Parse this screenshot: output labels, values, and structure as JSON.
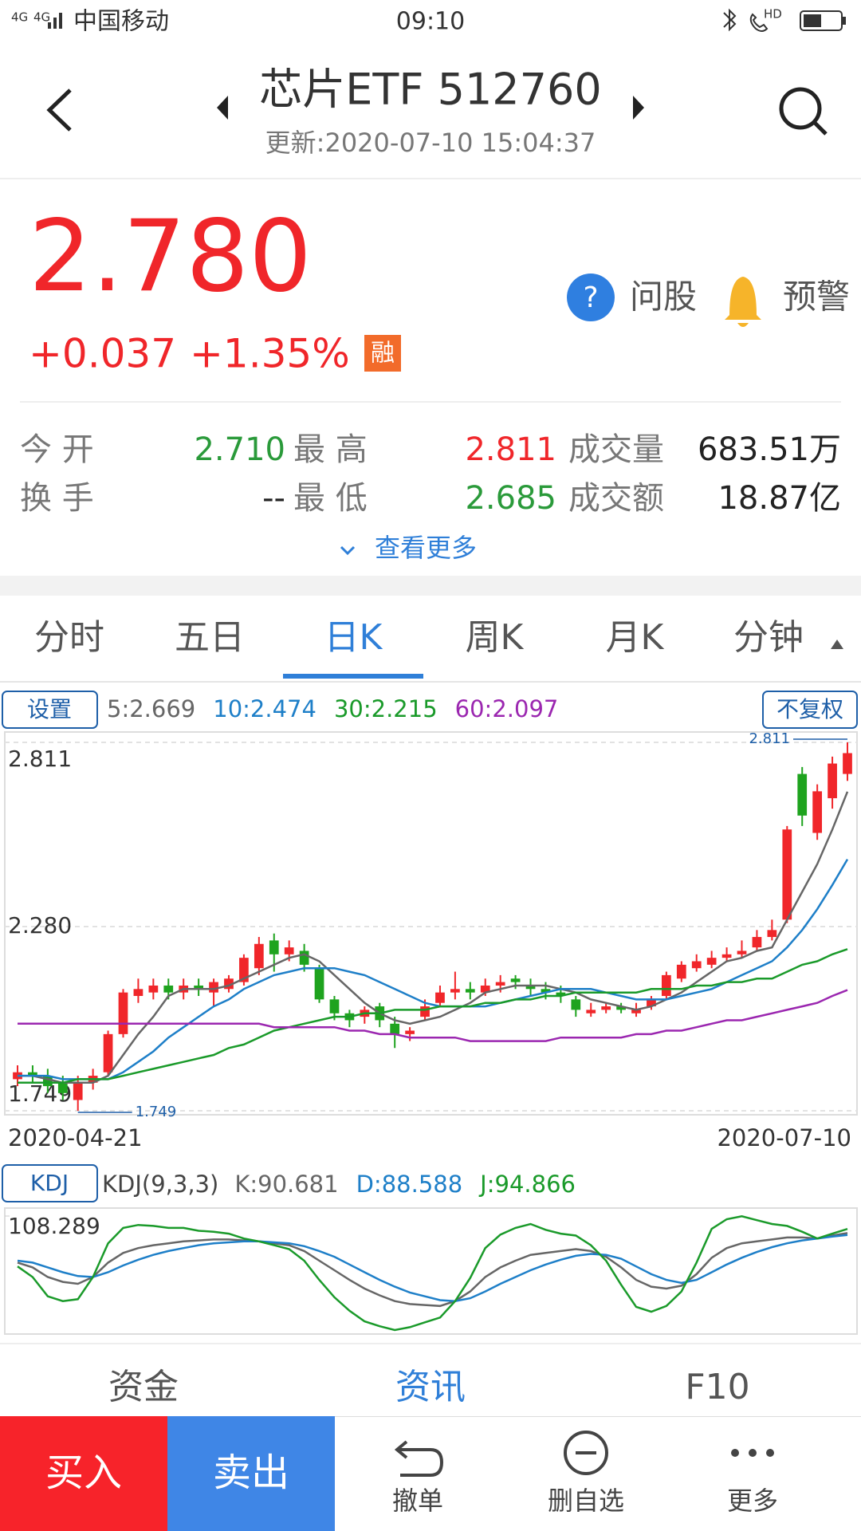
{
  "status_bar": {
    "network": "4G",
    "carrier": "中国移动",
    "time": "09:10",
    "hd": "HD"
  },
  "header": {
    "title": "芯片ETF 512760",
    "subtitle": "更新:2020-07-10 15:04:37"
  },
  "quote": {
    "price": "2.780",
    "change": "+0.037",
    "change_pct": "+1.35%",
    "badge": "融",
    "actions": [
      "问股",
      "预警"
    ]
  },
  "stats": [
    {
      "label": "今 开",
      "value": "2.710",
      "color": "#2a9a3a"
    },
    {
      "label": "最 高",
      "value": "2.811",
      "color": "#f0262a"
    },
    {
      "label": "成交量",
      "value": "683.51万",
      "color": "#222222"
    },
    {
      "label": "换 手",
      "value": "--",
      "color": "#222222"
    },
    {
      "label": "最 低",
      "value": "2.685",
      "color": "#2a9a3a"
    },
    {
      "label": "成交额",
      "value": "18.87亿",
      "color": "#222222"
    }
  ],
  "more": "查看更多",
  "tabs": {
    "items": [
      "分时",
      "五日",
      "日K",
      "周K",
      "月K",
      "分钟"
    ],
    "active": 2
  },
  "chart_buttons": {
    "settings": "设置",
    "adjust": "不复权",
    "indicator": "KDJ"
  },
  "bottom_tabs": {
    "items": [
      "资金",
      "资讯",
      "F10"
    ],
    "active": 1
  },
  "action_bar": {
    "buy": "买入",
    "sell": "卖出",
    "items": [
      "撤单",
      "删自选",
      "更多"
    ]
  },
  "chart_data": [
    {
      "type": "candlestick",
      "up_color": "#f0262a",
      "down_color": "#1ea31e",
      "categories": [
        "2020-04-21",
        null,
        null,
        null,
        null,
        null,
        null,
        null,
        null,
        null,
        null,
        null,
        null,
        null,
        null,
        null,
        null,
        null,
        null,
        null,
        null,
        null,
        null,
        null,
        null,
        null,
        null,
        null,
        null,
        null,
        null,
        null,
        null,
        null,
        null,
        null,
        null,
        null,
        null,
        null,
        null,
        null,
        null,
        null,
        null,
        null,
        null,
        null,
        null,
        null,
        null,
        null,
        null,
        null,
        null,
        "2020-07-10"
      ],
      "open": [
        1.84,
        1.86,
        1.85,
        1.83,
        1.78,
        1.83,
        1.86,
        1.97,
        2.08,
        2.09,
        2.11,
        2.09,
        2.11,
        2.09,
        2.1,
        2.12,
        2.16,
        2.24,
        2.2,
        2.21,
        2.16,
        2.07,
        2.03,
        2.02,
        2.05,
        2.0,
        1.97,
        2.02,
        2.06,
        2.09,
        2.1,
        2.09,
        2.11,
        2.13,
        2.11,
        2.1,
        2.09,
        2.07,
        2.03,
        2.04,
        2.05,
        2.03,
        2.05,
        2.08,
        2.13,
        2.16,
        2.17,
        2.19,
        2.2,
        2.22,
        2.25,
        2.3,
        2.72,
        2.55,
        2.65,
        2.72
      ],
      "high": [
        1.88,
        1.88,
        1.87,
        1.85,
        1.85,
        1.87,
        1.98,
        2.1,
        2.13,
        2.13,
        2.13,
        2.13,
        2.13,
        2.13,
        2.14,
        2.2,
        2.25,
        2.26,
        2.24,
        2.23,
        2.17,
        2.08,
        2.04,
        2.05,
        2.06,
        2.02,
        1.99,
        2.07,
        2.11,
        2.15,
        2.12,
        2.13,
        2.14,
        2.14,
        2.13,
        2.12,
        2.11,
        2.08,
        2.06,
        2.06,
        2.06,
        2.06,
        2.08,
        2.15,
        2.18,
        2.2,
        2.21,
        2.22,
        2.24,
        2.27,
        2.3,
        2.57,
        2.74,
        2.69,
        2.77,
        2.811
      ],
      "low": [
        1.82,
        1.83,
        1.8,
        1.78,
        1.749,
        1.81,
        1.85,
        1.96,
        2.06,
        2.07,
        2.07,
        2.07,
        2.08,
        2.05,
        2.09,
        2.11,
        2.14,
        2.15,
        2.18,
        2.15,
        2.06,
        2.01,
        1.99,
        2.0,
        1.99,
        1.93,
        1.95,
        2.01,
        2.05,
        2.07,
        2.07,
        2.08,
        2.09,
        2.1,
        2.08,
        2.07,
        2.06,
        2.02,
        2.02,
        2.03,
        2.03,
        2.02,
        2.04,
        2.07,
        2.12,
        2.15,
        2.16,
        2.18,
        2.19,
        2.21,
        2.24,
        2.29,
        2.57,
        2.53,
        2.62,
        2.7
      ],
      "close": [
        1.86,
        1.85,
        1.82,
        1.8,
        1.83,
        1.85,
        1.97,
        2.09,
        2.1,
        2.11,
        2.09,
        2.11,
        2.1,
        2.12,
        2.13,
        2.19,
        2.23,
        2.2,
        2.22,
        2.17,
        2.07,
        2.03,
        2.01,
        2.04,
        2.01,
        1.97,
        1.98,
        2.05,
        2.09,
        2.1,
        2.09,
        2.11,
        2.12,
        2.12,
        2.1,
        2.09,
        2.08,
        2.04,
        2.04,
        2.05,
        2.04,
        2.04,
        2.07,
        2.14,
        2.17,
        2.18,
        2.19,
        2.2,
        2.21,
        2.25,
        2.27,
        2.56,
        2.6,
        2.67,
        2.75,
        2.78
      ],
      "ylim": [
        1.749,
        2.811
      ],
      "yticks": [
        2.811,
        {
          "value": 2.28,
          "label": "2.280"
        },
        1.749
      ],
      "series": [
        {
          "name": "5:2.669",
          "color": "#666666",
          "values": [
            1.85,
            1.85,
            1.84,
            1.83,
            1.83,
            1.83,
            1.85,
            1.91,
            1.97,
            2.02,
            2.08,
            2.1,
            2.1,
            2.1,
            2.11,
            2.13,
            2.15,
            2.17,
            2.19,
            2.2,
            2.18,
            2.14,
            2.1,
            2.06,
            2.03,
            2.01,
            2.0,
            2.01,
            2.02,
            2.04,
            2.06,
            2.09,
            2.1,
            2.11,
            2.11,
            2.11,
            2.1,
            2.09,
            2.07,
            2.06,
            2.05,
            2.04,
            2.05,
            2.07,
            2.09,
            2.12,
            2.15,
            2.18,
            2.19,
            2.21,
            2.22,
            2.3,
            2.38,
            2.46,
            2.56,
            2.669
          ]
        },
        {
          "name": "10:2.474",
          "color": "#1e7fc8",
          "values": [
            1.85,
            1.85,
            1.85,
            1.84,
            1.84,
            1.84,
            1.84,
            1.86,
            1.89,
            1.92,
            1.96,
            1.99,
            2.02,
            2.05,
            2.07,
            2.1,
            2.12,
            2.14,
            2.15,
            2.16,
            2.16,
            2.16,
            2.15,
            2.14,
            2.12,
            2.1,
            2.08,
            2.06,
            2.05,
            2.05,
            2.05,
            2.05,
            2.06,
            2.07,
            2.08,
            2.09,
            2.1,
            2.1,
            2.1,
            2.09,
            2.08,
            2.07,
            2.07,
            2.07,
            2.08,
            2.09,
            2.1,
            2.12,
            2.14,
            2.16,
            2.18,
            2.22,
            2.27,
            2.33,
            2.4,
            2.474
          ]
        },
        {
          "name": "30:2.215",
          "color": "#1a9a2a",
          "values": [
            1.83,
            1.83,
            1.83,
            1.83,
            1.84,
            1.84,
            1.84,
            1.85,
            1.86,
            1.87,
            1.88,
            1.89,
            1.9,
            1.91,
            1.93,
            1.94,
            1.96,
            1.98,
            1.99,
            2.0,
            2.01,
            2.02,
            2.02,
            2.03,
            2.03,
            2.04,
            2.04,
            2.04,
            2.05,
            2.05,
            2.05,
            2.06,
            2.06,
            2.07,
            2.07,
            2.08,
            2.08,
            2.09,
            2.09,
            2.09,
            2.09,
            2.09,
            2.1,
            2.1,
            2.1,
            2.11,
            2.11,
            2.12,
            2.12,
            2.13,
            2.13,
            2.15,
            2.17,
            2.18,
            2.2,
            2.215
          ]
        },
        {
          "name": "60:2.097",
          "color": "#9b27b0",
          "values": [
            2.0,
            2.0,
            2.0,
            2.0,
            2.0,
            2.0,
            2.0,
            2.0,
            2.0,
            2.0,
            2.0,
            2.0,
            2.0,
            2.0,
            2.0,
            2.0,
            2.0,
            1.99,
            1.99,
            1.99,
            1.99,
            1.99,
            1.98,
            1.98,
            1.97,
            1.97,
            1.96,
            1.96,
            1.96,
            1.96,
            1.95,
            1.95,
            1.95,
            1.95,
            1.95,
            1.95,
            1.96,
            1.96,
            1.96,
            1.96,
            1.96,
            1.97,
            1.97,
            1.98,
            1.98,
            1.99,
            2.0,
            2.01,
            2.01,
            2.02,
            2.03,
            2.04,
            2.05,
            2.06,
            2.08,
            2.097
          ]
        }
      ]
    },
    {
      "type": "line",
      "title": "KDJ(9,3,3)",
      "ylim": [
        -10,
        108.289
      ],
      "yticks": [
        108.289
      ],
      "series": [
        {
          "name": "K:90.681",
          "color": "#666666",
          "values": [
            60,
            55,
            45,
            40,
            38,
            45,
            60,
            70,
            75,
            78,
            80,
            82,
            83,
            84,
            84,
            83,
            82,
            80,
            78,
            72,
            62,
            52,
            42,
            33,
            26,
            20,
            17,
            16,
            15,
            20,
            30,
            45,
            55,
            62,
            68,
            70,
            72,
            74,
            72,
            66,
            55,
            42,
            35,
            33,
            36,
            48,
            65,
            75,
            80,
            82,
            84,
            86,
            86,
            85,
            88,
            90.681
          ]
        },
        {
          "name": "D:88.588",
          "color": "#1e7fc8",
          "values": [
            62,
            60,
            55,
            50,
            46,
            45,
            50,
            57,
            63,
            68,
            72,
            75,
            78,
            80,
            81,
            82,
            82,
            81,
            80,
            77,
            72,
            66,
            58,
            50,
            42,
            35,
            29,
            25,
            21,
            20,
            23,
            30,
            38,
            45,
            52,
            58,
            63,
            67,
            69,
            68,
            64,
            56,
            48,
            42,
            39,
            42,
            50,
            58,
            65,
            71,
            76,
            80,
            83,
            85,
            87,
            88.588
          ]
        },
        {
          "name": "J:94.866",
          "color": "#1a9a2a",
          "values": [
            56,
            45,
            25,
            20,
            22,
            45,
            80,
            96,
            99,
            98,
            96,
            96,
            93,
            92,
            90,
            85,
            82,
            78,
            74,
            62,
            42,
            24,
            10,
            -1,
            -6,
            -10,
            -7,
            -2,
            3,
            20,
            44,
            75,
            89,
            96,
            100,
            94,
            90,
            88,
            78,
            62,
            37,
            14,
            9,
            15,
            30,
            60,
            95,
            105,
            108,
            104,
            100,
            98,
            92,
            85,
            90,
            94.866
          ]
        }
      ]
    }
  ]
}
